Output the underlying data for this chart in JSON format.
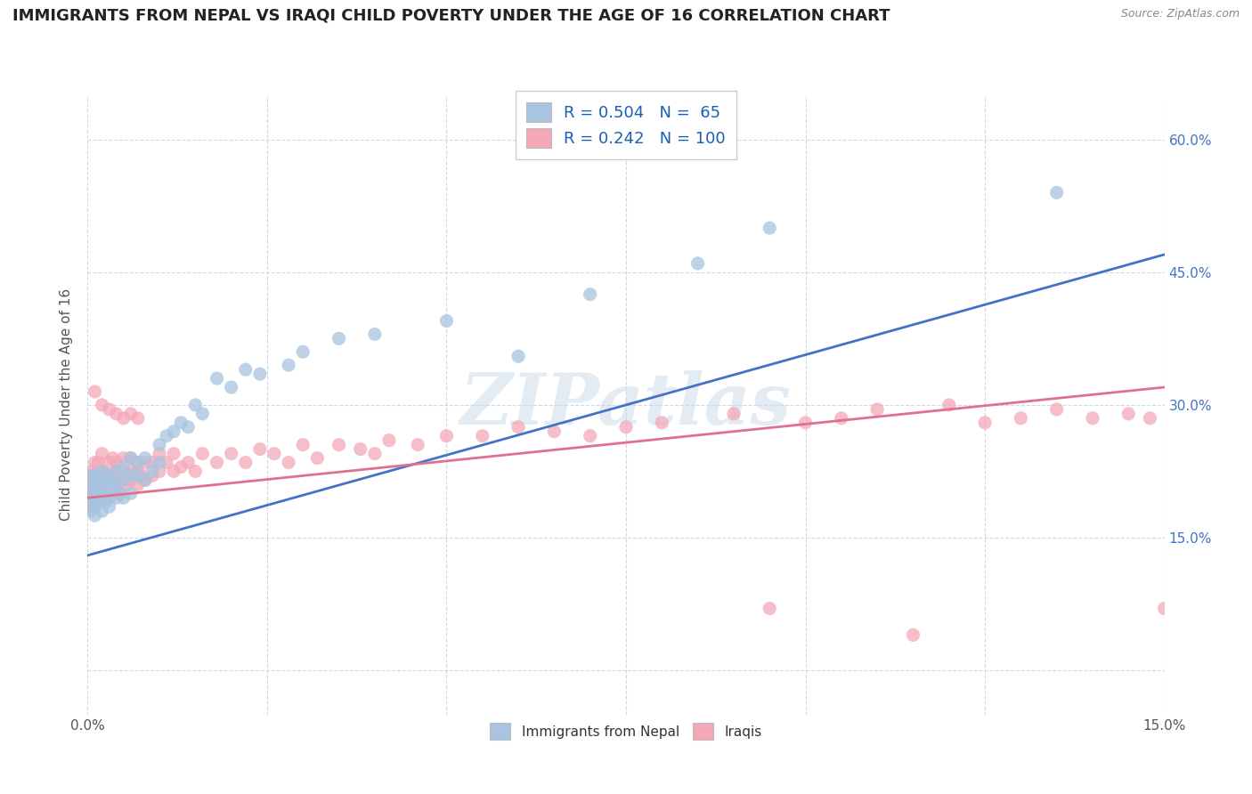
{
  "title": "IMMIGRANTS FROM NEPAL VS IRAQI CHILD POVERTY UNDER THE AGE OF 16 CORRELATION CHART",
  "source": "Source: ZipAtlas.com",
  "ylabel": "Child Poverty Under the Age of 16",
  "xlim": [
    0.0,
    0.15
  ],
  "ylim": [
    -0.05,
    0.65
  ],
  "x_ticks": [
    0.0,
    0.025,
    0.05,
    0.075,
    0.1,
    0.125,
    0.15
  ],
  "x_tick_labels": [
    "0.0%",
    "",
    "",
    "",
    "",
    "",
    "15.0%"
  ],
  "y_ticks": [
    0.0,
    0.15,
    0.3,
    0.45,
    0.6
  ],
  "y_tick_labels": [
    "",
    "15.0%",
    "30.0%",
    "45.0%",
    "60.0%"
  ],
  "nepal_R": 0.504,
  "nepal_N": 65,
  "iraqi_R": 0.242,
  "iraqi_N": 100,
  "nepal_color": "#a8c4e0",
  "iraqi_color": "#f4a8b8",
  "nepal_line_color": "#4472c4",
  "iraqi_line_color": "#e07090",
  "watermark": "ZIPatlas",
  "nepal_scatter_x": [
    0.0005,
    0.0005,
    0.0005,
    0.0007,
    0.0008,
    0.001,
    0.001,
    0.001,
    0.001,
    0.001,
    0.0013,
    0.0015,
    0.0015,
    0.0015,
    0.0018,
    0.002,
    0.002,
    0.002,
    0.002,
    0.002,
    0.0022,
    0.0025,
    0.003,
    0.003,
    0.003,
    0.003,
    0.003,
    0.0035,
    0.004,
    0.004,
    0.004,
    0.0045,
    0.005,
    0.005,
    0.005,
    0.006,
    0.006,
    0.006,
    0.007,
    0.007,
    0.008,
    0.008,
    0.009,
    0.01,
    0.01,
    0.011,
    0.012,
    0.013,
    0.014,
    0.015,
    0.016,
    0.018,
    0.02,
    0.022,
    0.024,
    0.028,
    0.03,
    0.035,
    0.04,
    0.05,
    0.06,
    0.07,
    0.085,
    0.095,
    0.135
  ],
  "nepal_scatter_y": [
    0.2,
    0.18,
    0.22,
    0.21,
    0.19,
    0.21,
    0.185,
    0.22,
    0.195,
    0.175,
    0.2,
    0.215,
    0.19,
    0.22,
    0.205,
    0.21,
    0.195,
    0.225,
    0.18,
    0.2,
    0.215,
    0.19,
    0.205,
    0.22,
    0.195,
    0.215,
    0.185,
    0.21,
    0.225,
    0.195,
    0.21,
    0.2,
    0.215,
    0.23,
    0.195,
    0.22,
    0.24,
    0.2,
    0.235,
    0.22,
    0.24,
    0.215,
    0.225,
    0.235,
    0.255,
    0.265,
    0.27,
    0.28,
    0.275,
    0.3,
    0.29,
    0.33,
    0.32,
    0.34,
    0.335,
    0.345,
    0.36,
    0.375,
    0.38,
    0.395,
    0.355,
    0.425,
    0.46,
    0.5,
    0.54
  ],
  "iraqi_scatter_x": [
    0.0003,
    0.0003,
    0.0005,
    0.0005,
    0.0005,
    0.0007,
    0.0007,
    0.001,
    0.001,
    0.001,
    0.001,
    0.001,
    0.001,
    0.0012,
    0.0012,
    0.0015,
    0.0015,
    0.0018,
    0.002,
    0.002,
    0.002,
    0.002,
    0.002,
    0.0022,
    0.0025,
    0.003,
    0.003,
    0.003,
    0.003,
    0.0032,
    0.0035,
    0.004,
    0.004,
    0.004,
    0.0045,
    0.005,
    0.005,
    0.005,
    0.0055,
    0.006,
    0.006,
    0.006,
    0.007,
    0.007,
    0.007,
    0.0075,
    0.008,
    0.008,
    0.009,
    0.009,
    0.01,
    0.01,
    0.011,
    0.012,
    0.012,
    0.013,
    0.014,
    0.015,
    0.016,
    0.018,
    0.02,
    0.022,
    0.024,
    0.026,
    0.028,
    0.03,
    0.032,
    0.035,
    0.038,
    0.04,
    0.042,
    0.046,
    0.05,
    0.055,
    0.06,
    0.065,
    0.07,
    0.075,
    0.08,
    0.09,
    0.095,
    0.1,
    0.105,
    0.11,
    0.115,
    0.12,
    0.125,
    0.13,
    0.135,
    0.14,
    0.145,
    0.148,
    0.15,
    0.001,
    0.002,
    0.003,
    0.004,
    0.005,
    0.006,
    0.007
  ],
  "iraqi_scatter_y": [
    0.22,
    0.185,
    0.215,
    0.2,
    0.225,
    0.215,
    0.195,
    0.205,
    0.22,
    0.19,
    0.235,
    0.215,
    0.2,
    0.22,
    0.195,
    0.235,
    0.21,
    0.22,
    0.225,
    0.215,
    0.245,
    0.195,
    0.21,
    0.225,
    0.2,
    0.215,
    0.235,
    0.195,
    0.22,
    0.215,
    0.24,
    0.225,
    0.21,
    0.235,
    0.2,
    0.225,
    0.215,
    0.24,
    0.21,
    0.225,
    0.24,
    0.215,
    0.225,
    0.21,
    0.235,
    0.22,
    0.235,
    0.215,
    0.22,
    0.235,
    0.225,
    0.245,
    0.235,
    0.225,
    0.245,
    0.23,
    0.235,
    0.225,
    0.245,
    0.235,
    0.245,
    0.235,
    0.25,
    0.245,
    0.235,
    0.255,
    0.24,
    0.255,
    0.25,
    0.245,
    0.26,
    0.255,
    0.265,
    0.265,
    0.275,
    0.27,
    0.265,
    0.275,
    0.28,
    0.29,
    0.07,
    0.28,
    0.285,
    0.295,
    0.04,
    0.3,
    0.28,
    0.285,
    0.295,
    0.285,
    0.29,
    0.285,
    0.07,
    0.315,
    0.3,
    0.295,
    0.29,
    0.285,
    0.29,
    0.285
  ],
  "nepal_line_y_at_0": 0.13,
  "nepal_line_y_at_15pct": 0.47,
  "iraqi_line_y_at_0": 0.195,
  "iraqi_line_y_at_15pct": 0.32,
  "background_color": "#ffffff",
  "grid_color": "#d0d8e8",
  "title_fontsize": 13,
  "legend_fontsize": 13
}
